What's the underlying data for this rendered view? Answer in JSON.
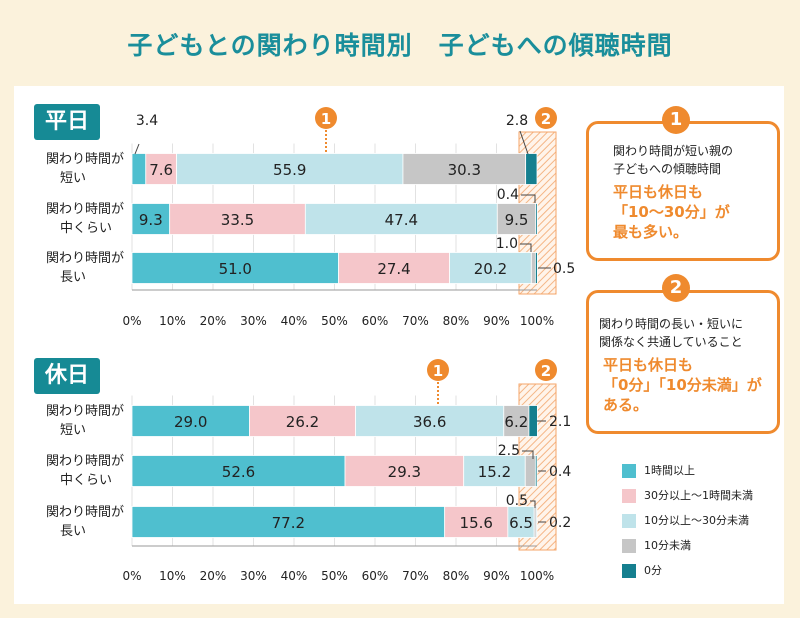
{
  "title": "子どもとの関わり時間別　子どもへの傾聴時間",
  "colors": {
    "c1": "#4fbfcf",
    "c2": "#f5c6ca",
    "c3": "#bfe3ea",
    "c4": "#c6c6c6",
    "c5": "#157f8f",
    "accent": "#ef8a2e",
    "tag": "#168a95",
    "title": "#1a8e9b"
  },
  "legend": [
    {
      "label": "1時間以上",
      "color": "#4fbfcf"
    },
    {
      "label": "30分以上〜1時間未満",
      "color": "#f5c6ca"
    },
    {
      "label": "10分以上〜30分未満",
      "color": "#bfe3ea"
    },
    {
      "label": "10分未満",
      "color": "#c6c6c6"
    },
    {
      "label": "0分",
      "color": "#157f8f"
    }
  ],
  "notes": [
    {
      "num": "1",
      "desc_lines": [
        "関わり時間が短い親の",
        "子どもへの傾聴時間"
      ],
      "emph_lines": [
        "平日も休日も",
        "「10〜30分」が",
        "最も多い。"
      ]
    },
    {
      "num": "2",
      "desc_lines": [
        "関わり時間の長い・短いに",
        "関係なく共通していること"
      ],
      "emph_lines": [
        "平日も休日も",
        "「0分」「10分未満」が",
        "ある。"
      ]
    }
  ],
  "chart_data": [
    {
      "type": "bar",
      "orientation": "horizontal",
      "stacked": true,
      "panel_label": "平日",
      "categories": [
        [
          "関わり時間が",
          "短い"
        ],
        [
          "関わり時間が",
          "中くらい"
        ],
        [
          "関わり時間が",
          "長い"
        ]
      ],
      "series": [
        {
          "name": "1時間以上",
          "values": [
            3.4,
            9.3,
            51.0
          ]
        },
        {
          "name": "30分以上〜1時間未満",
          "values": [
            7.6,
            33.5,
            27.4
          ]
        },
        {
          "name": "10分以上〜30分未満",
          "values": [
            55.9,
            47.4,
            20.2
          ]
        },
        {
          "name": "10分未満",
          "values": [
            30.3,
            9.5,
            1.0
          ]
        },
        {
          "name": "0分",
          "values": [
            2.8,
            0.4,
            0.5
          ]
        }
      ],
      "xticks": [
        "0%",
        "10%",
        "20%",
        "30%",
        "40%",
        "50%",
        "60%",
        "70%",
        "80%",
        "90%",
        "100%"
      ],
      "xlim": [
        0,
        100
      ],
      "marker1": "1",
      "marker2": "2",
      "data_labels": [
        [
          "3.4",
          "7.6",
          "55.9",
          "30.3",
          "2.8"
        ],
        [
          "9.3",
          "33.5",
          "47.4",
          "9.5",
          "0.4"
        ],
        [
          "51.0",
          "27.4",
          "20.2",
          "1.0",
          "0.5"
        ]
      ]
    },
    {
      "type": "bar",
      "orientation": "horizontal",
      "stacked": true,
      "panel_label": "休日",
      "categories": [
        [
          "関わり時間が",
          "短い"
        ],
        [
          "関わり時間が",
          "中くらい"
        ],
        [
          "関わり時間が",
          "長い"
        ]
      ],
      "series": [
        {
          "name": "1時間以上",
          "values": [
            29.0,
            52.6,
            77.2
          ]
        },
        {
          "name": "30分以上〜1時間未満",
          "values": [
            26.2,
            29.3,
            15.6
          ]
        },
        {
          "name": "10分以上〜30分未満",
          "values": [
            36.6,
            15.2,
            6.5
          ]
        },
        {
          "name": "10分未満",
          "values": [
            6.2,
            2.5,
            0.5
          ]
        },
        {
          "name": "0分",
          "values": [
            2.1,
            0.4,
            0.2
          ]
        }
      ],
      "xticks": [
        "0%",
        "10%",
        "20%",
        "30%",
        "40%",
        "50%",
        "60%",
        "70%",
        "80%",
        "90%",
        "100%"
      ],
      "xlim": [
        0,
        100
      ],
      "marker1": "1",
      "marker2": "2",
      "data_labels": [
        [
          "29.0",
          "26.2",
          "36.6",
          "6.2",
          "2.1"
        ],
        [
          "52.6",
          "29.3",
          "15.2",
          "2.5",
          "0.4"
        ],
        [
          "77.2",
          "15.6",
          "6.5",
          "0.5",
          "0.2"
        ]
      ]
    }
  ]
}
